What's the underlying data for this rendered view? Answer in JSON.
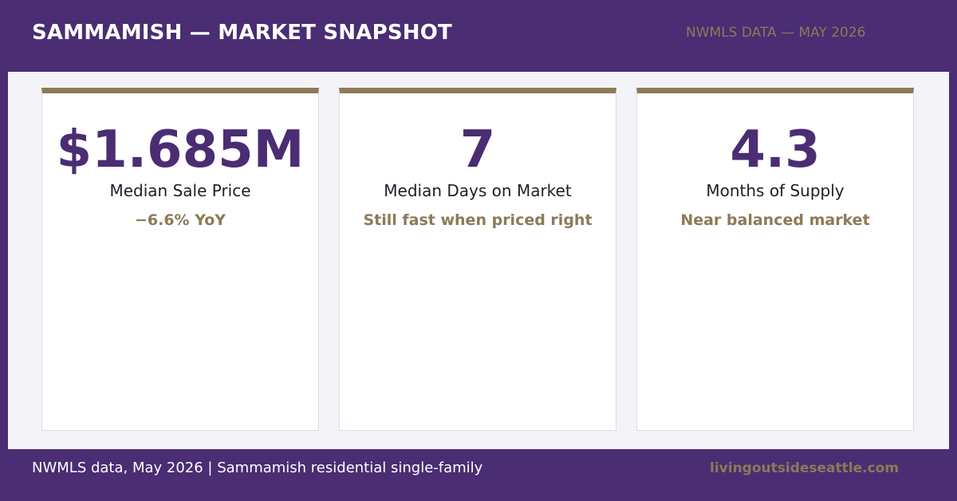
{
  "header": {
    "title": "SAMMAMISH — MARKET SNAPSHOT",
    "subtitle": "NWMLS DATA — MAY 2026"
  },
  "cards": [
    {
      "value": "$1.685M",
      "label": "Median Sale Price",
      "note": "−6.6% YoY"
    },
    {
      "value": "7",
      "label": "Median Days on Market",
      "note": "Still fast when priced right"
    },
    {
      "value": "4.3",
      "label": "Months of Supply",
      "note": "Near balanced market"
    }
  ],
  "footer": {
    "left": "NWMLS data, May 2026 | Sammamish residential single-family",
    "right": "livingoutsideseattle.com"
  }
}
